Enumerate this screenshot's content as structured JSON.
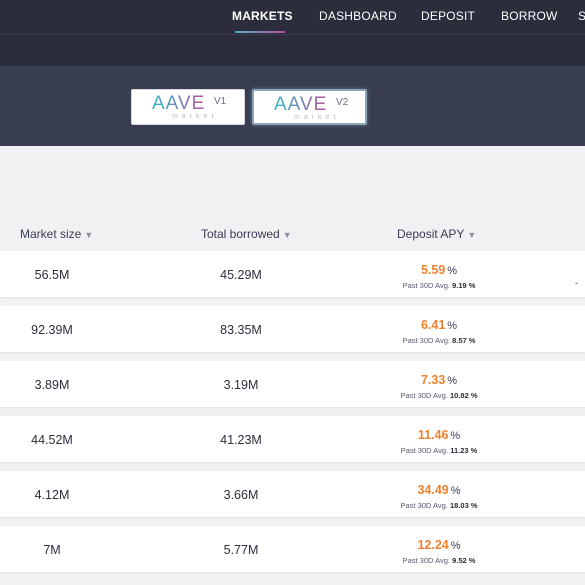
{
  "nav": {
    "items": [
      {
        "label": "MARKETS",
        "active": true
      },
      {
        "label": "DASHBOARD",
        "active": false
      },
      {
        "label": "DEPOSIT",
        "active": false
      },
      {
        "label": "BORROW",
        "active": false
      },
      {
        "label": "S",
        "active": false
      }
    ]
  },
  "markets": [
    {
      "logo": "AAVE",
      "sub": "market",
      "version": "V1",
      "selected": false
    },
    {
      "logo": "AAVE",
      "sub": "market",
      "version": "V2",
      "selected": true
    }
  ],
  "table": {
    "headers": {
      "market_size": "Market size",
      "total_borrowed": "Total borrowed",
      "deposit_apy": "Deposit APY"
    },
    "avg_label": "Past 30D Avg.",
    "rows": [
      {
        "market_size": "56.5M",
        "total_borrowed": "45.29M",
        "apy": "5.59",
        "avg": "9.19 %"
      },
      {
        "market_size": "92.39M",
        "total_borrowed": "83.35M",
        "apy": "6.41",
        "avg": "8.57 %"
      },
      {
        "market_size": "3.89M",
        "total_borrowed": "3.19M",
        "apy": "7.33",
        "avg": "10.82 %"
      },
      {
        "market_size": "44.52M",
        "total_borrowed": "41.23M",
        "apy": "11.46",
        "avg": "11.23 %"
      },
      {
        "market_size": "4.12M",
        "total_borrowed": "3.66M",
        "apy": "34.49",
        "avg": "18.03 %"
      },
      {
        "market_size": "7M",
        "total_borrowed": "5.77M",
        "apy": "12.24",
        "avg": "9.52 %"
      }
    ]
  },
  "colors": {
    "nav_bg": "#2b2d3c",
    "banner_bg": "#383d51",
    "apy_orange": "#f0822d",
    "page_bg": "#f1f1f3"
  }
}
